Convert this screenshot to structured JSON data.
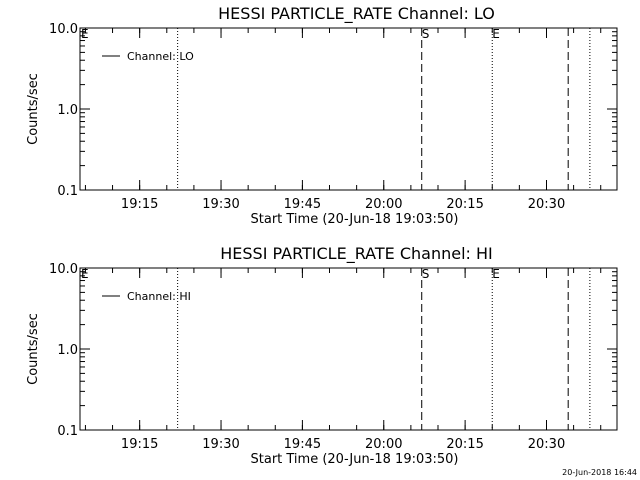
{
  "chart_data": [
    {
      "type": "line",
      "title": "HESSI PARTICLE_RATE Channel: LO",
      "xlabel": "Start Time (20-Jun-18 19:03:50)",
      "ylabel": "Counts/sec",
      "yscale": "log",
      "ylim": [
        0.1,
        10.0
      ],
      "yticks": [
        "10.0",
        "1.0",
        "0.1"
      ],
      "xlim": [
        "19:04",
        "20:43"
      ],
      "xticks": [
        "19:15",
        "19:30",
        "19:45",
        "20:00",
        "20:15",
        "20:30"
      ],
      "legend": {
        "entry": "Channel: LO",
        "placement": "top-left"
      },
      "series": [],
      "vlines": [
        {
          "x": "19:22",
          "style": "dotted",
          "label": ""
        },
        {
          "x": "20:07",
          "style": "dashed",
          "label": "S"
        },
        {
          "x": "20:20",
          "style": "dotted",
          "label": "E"
        },
        {
          "x": "20:34",
          "style": "dashed",
          "label": ""
        },
        {
          "x": "20:38",
          "style": "dotted",
          "label": ""
        }
      ],
      "corner_label": "E"
    },
    {
      "type": "line",
      "title": "HESSI PARTICLE_RATE Channel: HI",
      "xlabel": "Start Time (20-Jun-18 19:03:50)",
      "ylabel": "Counts/sec",
      "yscale": "log",
      "ylim": [
        0.1,
        10.0
      ],
      "yticks": [
        "10.0",
        "1.0",
        "0.1"
      ],
      "xlim": [
        "19:04",
        "20:43"
      ],
      "xticks": [
        "19:15",
        "19:30",
        "19:45",
        "20:00",
        "20:15",
        "20:30"
      ],
      "legend": {
        "entry": "Channel: HI",
        "placement": "top-left"
      },
      "series": [],
      "vlines": [
        {
          "x": "19:22",
          "style": "dotted",
          "label": ""
        },
        {
          "x": "20:07",
          "style": "dashed",
          "label": "S"
        },
        {
          "x": "20:20",
          "style": "dotted",
          "label": "E"
        },
        {
          "x": "20:34",
          "style": "dashed",
          "label": ""
        },
        {
          "x": "20:38",
          "style": "dotted",
          "label": ""
        }
      ],
      "corner_label": "E"
    }
  ],
  "footer": {
    "timestamp": "20-Jun-2018 16:44"
  }
}
